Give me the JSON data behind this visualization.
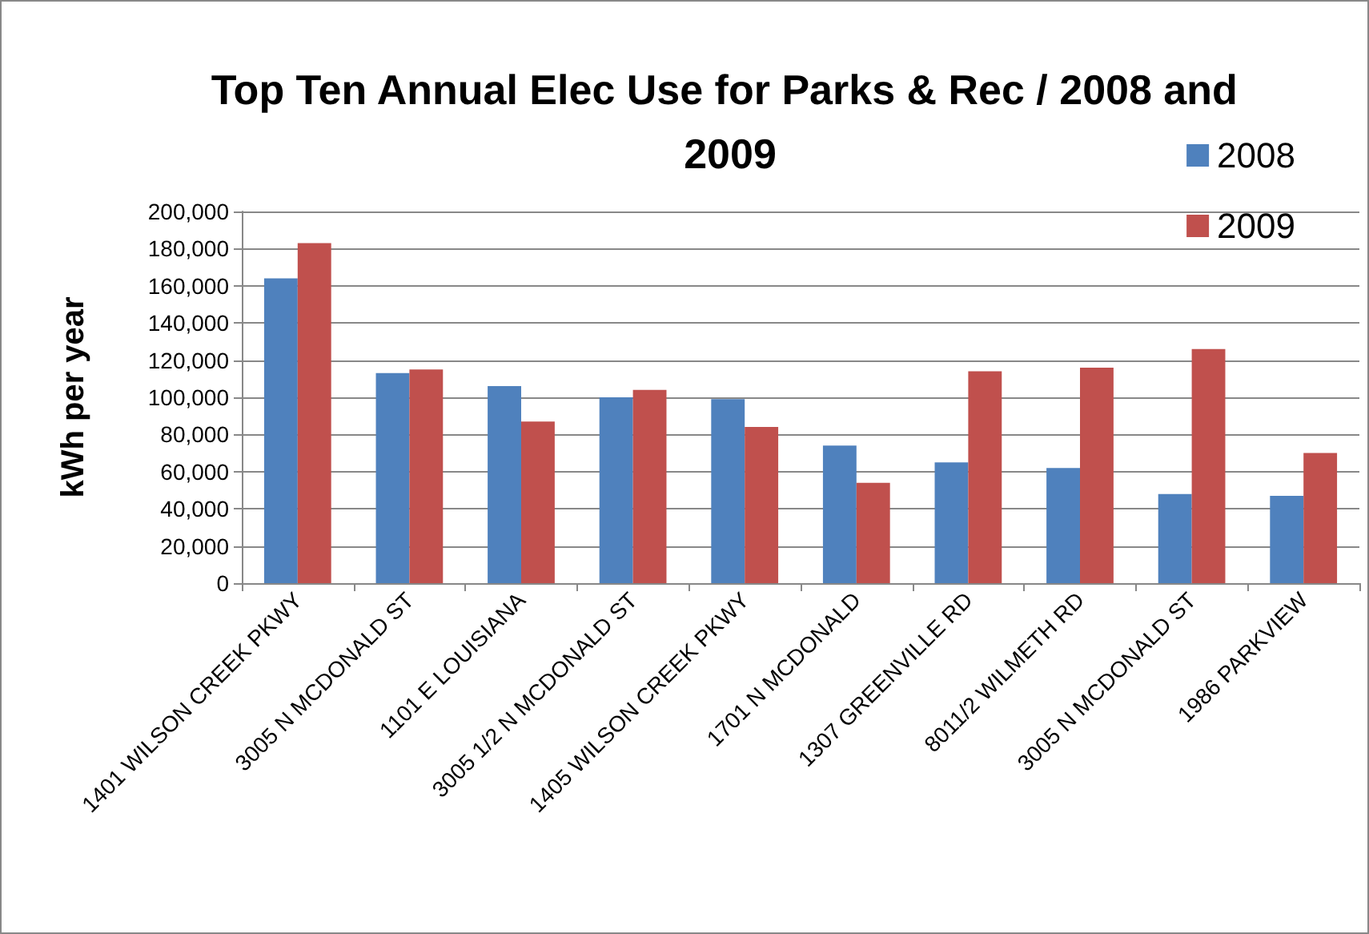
{
  "chart_data": {
    "type": "bar",
    "title": "Top Ten Annual Elec Use for Parks & Rec / 2008 and 2009",
    "ylabel": "kWh per year",
    "categories": [
      "1401 WILSON CREEK PKWY",
      "3005 N MCDONALD ST",
      "1101 E LOUISIANA",
      "3005 1/2 N MCDONALD ST",
      "1405 WILSON CREEK PKWY",
      "1701 N MCDONALD",
      "1307 GREENVILLE RD",
      "8011/2 WILMETH RD",
      "3005 N MCDONALD ST",
      "1986 PARKVIEW"
    ],
    "series": [
      {
        "name": "2008",
        "color": "#4f81bd",
        "values": [
          164000,
          113000,
          106000,
          100000,
          99000,
          74000,
          65000,
          62000,
          48000,
          47000
        ]
      },
      {
        "name": "2009",
        "color": "#c0504d",
        "values": [
          183000,
          115000,
          87000,
          104000,
          84000,
          54000,
          114000,
          116000,
          126000,
          70000
        ]
      }
    ],
    "ylim": [
      0,
      200000
    ],
    "yticks": [
      {
        "value": 0,
        "label": "0"
      },
      {
        "value": 20000,
        "label": "20,000"
      },
      {
        "value": 40000,
        "label": "40,000"
      },
      {
        "value": 60000,
        "label": "60,000"
      },
      {
        "value": 80000,
        "label": "80,000"
      },
      {
        "value": 100000,
        "label": "100,000"
      },
      {
        "value": 120000,
        "label": "120,000"
      },
      {
        "value": 140000,
        "label": "140,000"
      },
      {
        "value": 160000,
        "label": "160,000"
      },
      {
        "value": 180000,
        "label": "180,000"
      },
      {
        "value": 200000,
        "label": "200,000"
      }
    ],
    "grid": true,
    "legend": "top right"
  }
}
